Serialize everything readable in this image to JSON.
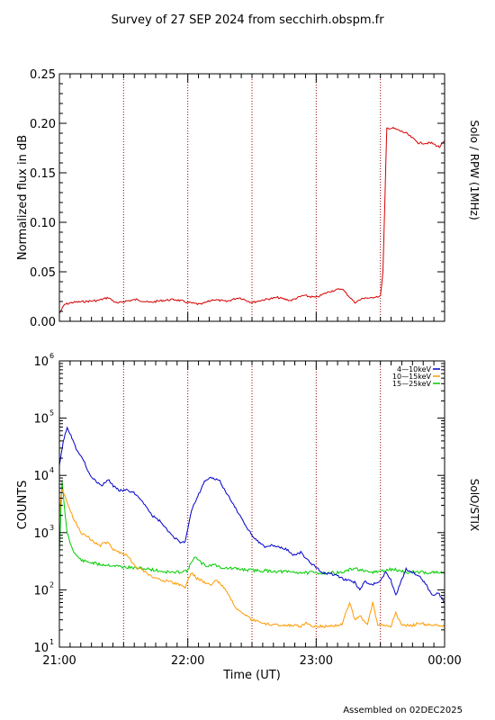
{
  "title": "Survey of 27 SEP 2024 from secchirh.obspm.fr",
  "footer": "Assembled on 02DEC2025",
  "colors": {
    "rpw": "#d40000",
    "band1": "#0000cc",
    "band2": "#ff9900",
    "band3": "#00cc00",
    "marker": "#990000"
  },
  "chart_data": [
    {
      "type": "line",
      "ylabel": "Normalized flux in dB",
      "right_label": "Solo / RPW (1MHz)",
      "ylim": [
        0,
        0.25
      ],
      "yticks": [
        "0.00",
        "0.05",
        "0.10",
        "0.15",
        "0.20",
        "0.25"
      ],
      "xlim_hours": [
        21,
        24
      ],
      "dotted_lines_hours": [
        21.5,
        22.0,
        22.5,
        23.0,
        23.5
      ],
      "series": [
        {
          "color": "#d40000",
          "x": [
            21.0,
            21.04,
            21.1,
            21.2,
            21.3,
            21.38,
            21.45,
            21.5,
            21.6,
            21.7,
            21.8,
            21.9,
            22.0,
            22.1,
            22.2,
            22.3,
            22.4,
            22.5,
            22.6,
            22.7,
            22.8,
            22.9,
            23.0,
            23.1,
            23.2,
            23.3,
            23.38,
            23.42,
            23.46,
            23.48,
            23.5,
            23.52,
            23.55,
            23.6,
            23.7,
            23.8,
            23.9,
            23.96,
            24.0
          ],
          "values": [
            0.008,
            0.017,
            0.019,
            0.02,
            0.021,
            0.024,
            0.018,
            0.02,
            0.022,
            0.019,
            0.021,
            0.022,
            0.019,
            0.017,
            0.022,
            0.02,
            0.024,
            0.019,
            0.022,
            0.024,
            0.021,
            0.026,
            0.024,
            0.03,
            0.033,
            0.019,
            0.024,
            0.023,
            0.025,
            0.025,
            0.025,
            0.05,
            0.195,
            0.195,
            0.19,
            0.18,
            0.18,
            0.176,
            0.182
          ]
        }
      ]
    },
    {
      "type": "line",
      "ylabel": "COUNTS",
      "right_label": "SolO/STIX",
      "xlabel": "Time (UT)",
      "yscale": "log",
      "ylim": [
        10,
        1000000
      ],
      "ytick_exponents": [
        "1",
        "2",
        "3",
        "4",
        "5",
        "6"
      ],
      "xlim_hours": [
        21,
        24
      ],
      "xticks": [
        {
          "hour": 21,
          "label": "21:00"
        },
        {
          "hour": 22,
          "label": "22:00"
        },
        {
          "hour": 23,
          "label": "23:00"
        },
        {
          "hour": 24,
          "label": "00:00"
        }
      ],
      "dotted_lines_hours": [
        21.5,
        22.0,
        22.5,
        23.0,
        23.5
      ],
      "series": [
        {
          "name": "4—10keV",
          "color": "#0000cc",
          "x": [
            21.0,
            21.03,
            21.06,
            21.09,
            21.13,
            21.18,
            21.23,
            21.28,
            21.33,
            21.38,
            21.42,
            21.47,
            21.52,
            21.58,
            21.65,
            21.72,
            21.78,
            21.84,
            21.9,
            21.95,
            21.98,
            22.0,
            22.03,
            22.07,
            22.1,
            22.13,
            22.18,
            22.25,
            22.3,
            22.38,
            22.45,
            22.52,
            22.6,
            22.65,
            22.72,
            22.78,
            22.82,
            22.88,
            22.95,
            23.0,
            23.05,
            23.12,
            23.18,
            23.22,
            23.26,
            23.3,
            23.34,
            23.38,
            23.42,
            23.46,
            23.5,
            23.54,
            23.58,
            23.62,
            23.66,
            23.7,
            23.75,
            23.8,
            23.85,
            23.9,
            23.95,
            24.0
          ],
          "values": [
            15000,
            40000,
            70000,
            50000,
            30000,
            20000,
            11000,
            8000,
            6500,
            8500,
            6500,
            5500,
            5500,
            5000,
            3500,
            2000,
            1600,
            1100,
            800,
            650,
            700,
            1200,
            2500,
            4000,
            5500,
            8000,
            9000,
            8000,
            5000,
            2500,
            1300,
            800,
            550,
            600,
            550,
            500,
            400,
            450,
            300,
            250,
            200,
            190,
            170,
            150,
            145,
            135,
            100,
            140,
            120,
            130,
            145,
            200,
            150,
            80,
            140,
            230,
            200,
            180,
            130,
            80,
            90,
            60
          ]
        },
        {
          "name": "10—15keV",
          "color": "#ff9900",
          "x": [
            21.0,
            21.02,
            21.05,
            21.08,
            21.12,
            21.17,
            21.22,
            21.28,
            21.32,
            21.38,
            21.42,
            21.47,
            21.52,
            21.57,
            21.6,
            21.65,
            21.7,
            21.75,
            21.8,
            21.85,
            21.9,
            21.95,
            21.98,
            22.0,
            22.03,
            22.07,
            22.12,
            22.18,
            22.22,
            22.28,
            22.32,
            22.38,
            22.45,
            22.5,
            22.55,
            22.6,
            22.65,
            22.72,
            22.8,
            22.88,
            22.92,
            22.96,
            23.0,
            23.1,
            23.2,
            23.26,
            23.3,
            23.34,
            23.4,
            23.44,
            23.48,
            23.52,
            23.58,
            23.62,
            23.66,
            23.7,
            23.75,
            23.8,
            23.85,
            23.9,
            24.0
          ],
          "values": [
            2000,
            6000,
            4000,
            2500,
            1600,
            1000,
            850,
            650,
            600,
            700,
            500,
            450,
            420,
            300,
            250,
            220,
            180,
            160,
            150,
            140,
            130,
            120,
            110,
            150,
            200,
            160,
            140,
            120,
            150,
            110,
            80,
            45,
            35,
            30,
            28,
            25,
            25,
            24,
            24,
            23,
            27,
            24,
            23,
            23,
            25,
            60,
            30,
            35,
            25,
            60,
            25,
            24,
            22,
            40,
            25,
            24,
            24,
            26,
            25,
            24,
            23
          ]
        },
        {
          "name": "15—25keV",
          "color": "#00cc00",
          "x": [
            21.0,
            21.02,
            21.04,
            21.06,
            21.09,
            21.13,
            21.18,
            21.25,
            21.3,
            21.4,
            21.5,
            21.6,
            21.7,
            21.8,
            21.9,
            22.0,
            22.05,
            22.1,
            22.15,
            22.2,
            22.25,
            22.3,
            22.4,
            22.5,
            22.6,
            22.7,
            22.8,
            22.9,
            23.0,
            23.1,
            23.2,
            23.3,
            23.4,
            23.5,
            23.6,
            23.7,
            23.8,
            23.9,
            24.0
          ],
          "values": [
            400,
            8500,
            2500,
            1000,
            600,
            400,
            320,
            300,
            280,
            270,
            250,
            240,
            230,
            210,
            200,
            220,
            380,
            300,
            260,
            280,
            250,
            240,
            230,
            220,
            215,
            210,
            205,
            200,
            198,
            198,
            200,
            240,
            200,
            210,
            230,
            200,
            205,
            200,
            198
          ]
        }
      ]
    }
  ]
}
